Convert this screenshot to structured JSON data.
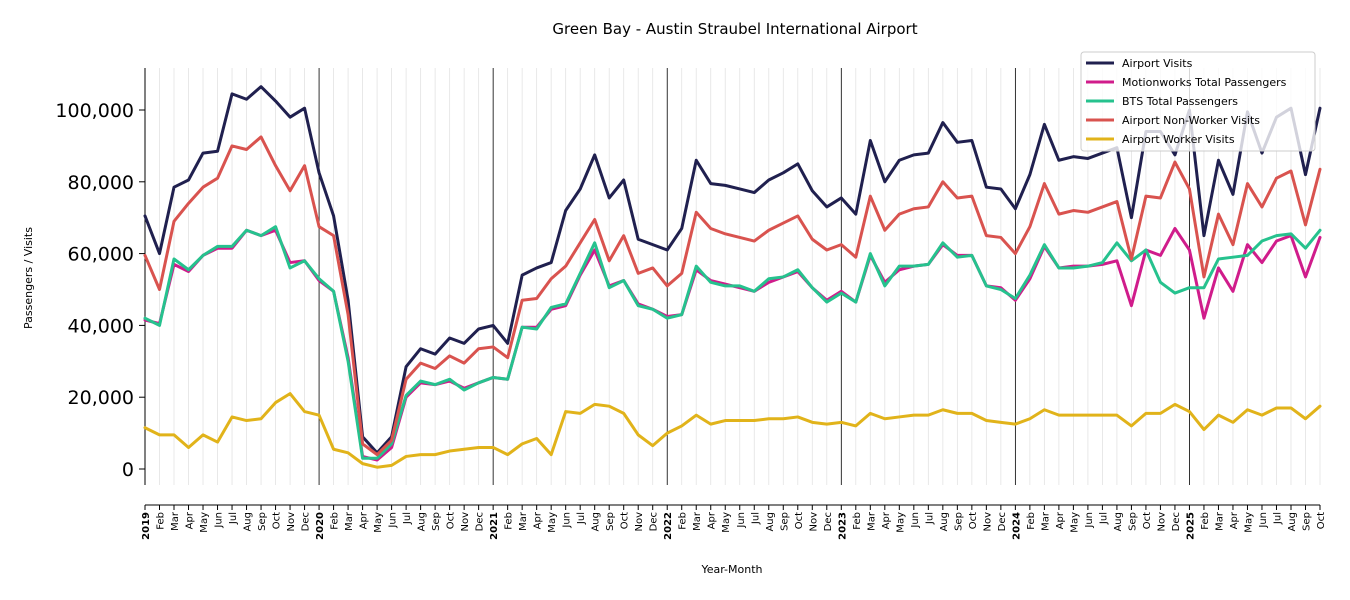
{
  "chart_data": {
    "type": "line",
    "title": "Green Bay - Austin Straubel International Airport",
    "xlabel": "Year-Month",
    "ylabel": "Passengers / Visits",
    "ylim": [
      -4000,
      111000
    ],
    "yticks": [
      0,
      20000,
      40000,
      60000,
      80000,
      100000
    ],
    "ytick_labels": [
      "0",
      "20,000",
      "40,000",
      "60,000",
      "80,000",
      "100,000"
    ],
    "legend_position": "top-right",
    "x": [
      "2019",
      "Feb",
      "Mar",
      "Apr",
      "May",
      "Jun",
      "Jul",
      "Aug",
      "Sep",
      "Oct",
      "Nov",
      "Dec",
      "2020",
      "Feb",
      "Mar",
      "Apr",
      "May",
      "Jun",
      "Jul",
      "Aug",
      "Sep",
      "Oct",
      "Nov",
      "Dec",
      "2021",
      "Feb",
      "Mar",
      "Apr",
      "May",
      "Jun",
      "Jul",
      "Aug",
      "Sep",
      "Oct",
      "Nov",
      "Dec",
      "2022",
      "Feb",
      "Mar",
      "Apr",
      "May",
      "Jun",
      "Jul",
      "Aug",
      "Sep",
      "Oct",
      "Nov",
      "Dec",
      "2023",
      "Feb",
      "Mar",
      "Apr",
      "May",
      "Jun",
      "Jul",
      "Aug",
      "Sep",
      "Oct",
      "Nov",
      "Dec",
      "2024",
      "Feb",
      "Mar",
      "Apr",
      "May",
      "Jun",
      "Jul",
      "Aug",
      "Sep",
      "Oct",
      "Nov",
      "Dec",
      "2025",
      "Feb",
      "Mar",
      "Apr",
      "May",
      "Jun",
      "Jul",
      "Aug",
      "Sep",
      "Oct"
    ],
    "series": [
      {
        "name": "Airport Visits",
        "color": "#20204f",
        "values": [
          70500,
          60000,
          78500,
          80500,
          88000,
          88500,
          104500,
          103000,
          106500,
          102500,
          98000,
          100500,
          82500,
          70500,
          47000,
          9000,
          4500,
          9000,
          28500,
          33500,
          32000,
          36500,
          35000,
          39000,
          40000,
          35000,
          54000,
          56000,
          57500,
          72000,
          78000,
          87500,
          75500,
          80500,
          64000,
          62500,
          61000,
          67000,
          86000,
          79500,
          79000,
          78000,
          77000,
          80500,
          82500,
          85000,
          77500,
          73000,
          75500,
          71000,
          91500,
          80000,
          86000,
          87500,
          88000,
          96500,
          91000,
          91500,
          78500,
          78000,
          72500,
          82000,
          96000,
          86000,
          87000,
          86500,
          88000,
          89500,
          70000,
          94000,
          94000,
          87500,
          100000,
          65000,
          86000,
          76500,
          99500,
          88000,
          98000,
          100500,
          82000,
          100500
        ]
      },
      {
        "name": "Motionworks Total Passengers",
        "color": "#d01c8b",
        "values": [
          41500,
          40500,
          57000,
          55000,
          59500,
          61500,
          61500,
          66500,
          65000,
          66500,
          57500,
          58000,
          52500,
          49500,
          31000,
          3500,
          2500,
          6000,
          20000,
          24000,
          23500,
          24500,
          22500,
          24000,
          25500,
          25000,
          39500,
          39500,
          44500,
          45500,
          54000,
          61000,
          51000,
          52500,
          46000,
          44500,
          42500,
          43000,
          55500,
          52500,
          51500,
          50500,
          49500,
          52000,
          53500,
          55000,
          50500,
          47000,
          49500,
          46500,
          59500,
          52000,
          55500,
          56500,
          57000,
          62500,
          59500,
          59500,
          51000,
          50500,
          47000,
          53000,
          62000,
          56000,
          56500,
          56500,
          57000,
          58000,
          45500,
          61000,
          59500,
          67000,
          61000,
          42000,
          56000,
          49500,
          62500,
          57500,
          63500,
          65000,
          53500,
          64500
        ]
      },
      {
        "name": "BTS Total Passengers",
        "color": "#26c28e",
        "values": [
          42000,
          40000,
          58500,
          55500,
          59500,
          62000,
          62000,
          66500,
          65000,
          67500,
          56000,
          58000,
          53000,
          49500,
          30000,
          3000,
          3000,
          7000,
          20500,
          24500,
          23500,
          25000,
          22000,
          24000,
          25500,
          25000,
          39500,
          39000,
          45000,
          46000,
          54500,
          63000,
          50500,
          52500,
          45500,
          44500,
          42000,
          43000,
          56500,
          52000,
          51000,
          51000,
          49500,
          53000,
          53500,
          55500,
          50500,
          46500,
          49000,
          46500,
          60000,
          51000,
          56500,
          56500,
          57000,
          63000,
          59000,
          59500,
          51000,
          50000,
          47500,
          54000,
          62500,
          56000,
          56000,
          56500,
          57500,
          63000,
          58000,
          61000,
          52000,
          49000,
          50500,
          50500,
          58500,
          59000,
          59500,
          63500,
          65000,
          65500,
          61500,
          66500
        ]
      },
      {
        "name": "Airport Non-Worker Visits",
        "color": "#d9534f",
        "values": [
          59500,
          50000,
          69000,
          74000,
          78500,
          81000,
          90000,
          89000,
          92500,
          84500,
          77500,
          84500,
          67500,
          65000,
          43000,
          7000,
          4000,
          8000,
          25000,
          29500,
          28000,
          31500,
          29500,
          33500,
          34000,
          31000,
          47000,
          47500,
          53000,
          56500,
          63000,
          69500,
          58000,
          65000,
          54500,
          56000,
          51000,
          54500,
          71500,
          67000,
          65500,
          64500,
          63500,
          66500,
          68500,
          70500,
          64000,
          61000,
          62500,
          59000,
          76000,
          66500,
          71000,
          72500,
          73000,
          80000,
          75500,
          76000,
          65000,
          64500,
          60000,
          67500,
          79500,
          71000,
          72000,
          71500,
          73000,
          74500,
          58500,
          76000,
          75500,
          85500,
          78000,
          53500,
          71000,
          62500,
          79500,
          73000,
          81000,
          83000,
          68000,
          83500
        ]
      },
      {
        "name": "Airport Worker Visits",
        "color": "#e1b31a",
        "values": [
          11500,
          9500,
          9500,
          6000,
          9500,
          7500,
          14500,
          13500,
          14000,
          18500,
          21000,
          16000,
          15000,
          5500,
          4500,
          1500,
          500,
          1000,
          3500,
          4000,
          4000,
          5000,
          5500,
          6000,
          6000,
          4000,
          7000,
          8500,
          4000,
          16000,
          15500,
          18000,
          17500,
          15500,
          9500,
          6500,
          10000,
          12000,
          15000,
          12500,
          13500,
          13500,
          13500,
          14000,
          14000,
          14500,
          13000,
          12500,
          13000,
          12000,
          15500,
          14000,
          14500,
          15000,
          15000,
          16500,
          15500,
          15500,
          13500,
          13000,
          12500,
          14000,
          16500,
          15000,
          15000,
          15000,
          15000,
          15000,
          12000,
          15500,
          15500,
          18000,
          16000,
          11000,
          15000,
          13000,
          16500,
          15000,
          17000,
          17000,
          14000,
          17500
        ]
      }
    ]
  }
}
